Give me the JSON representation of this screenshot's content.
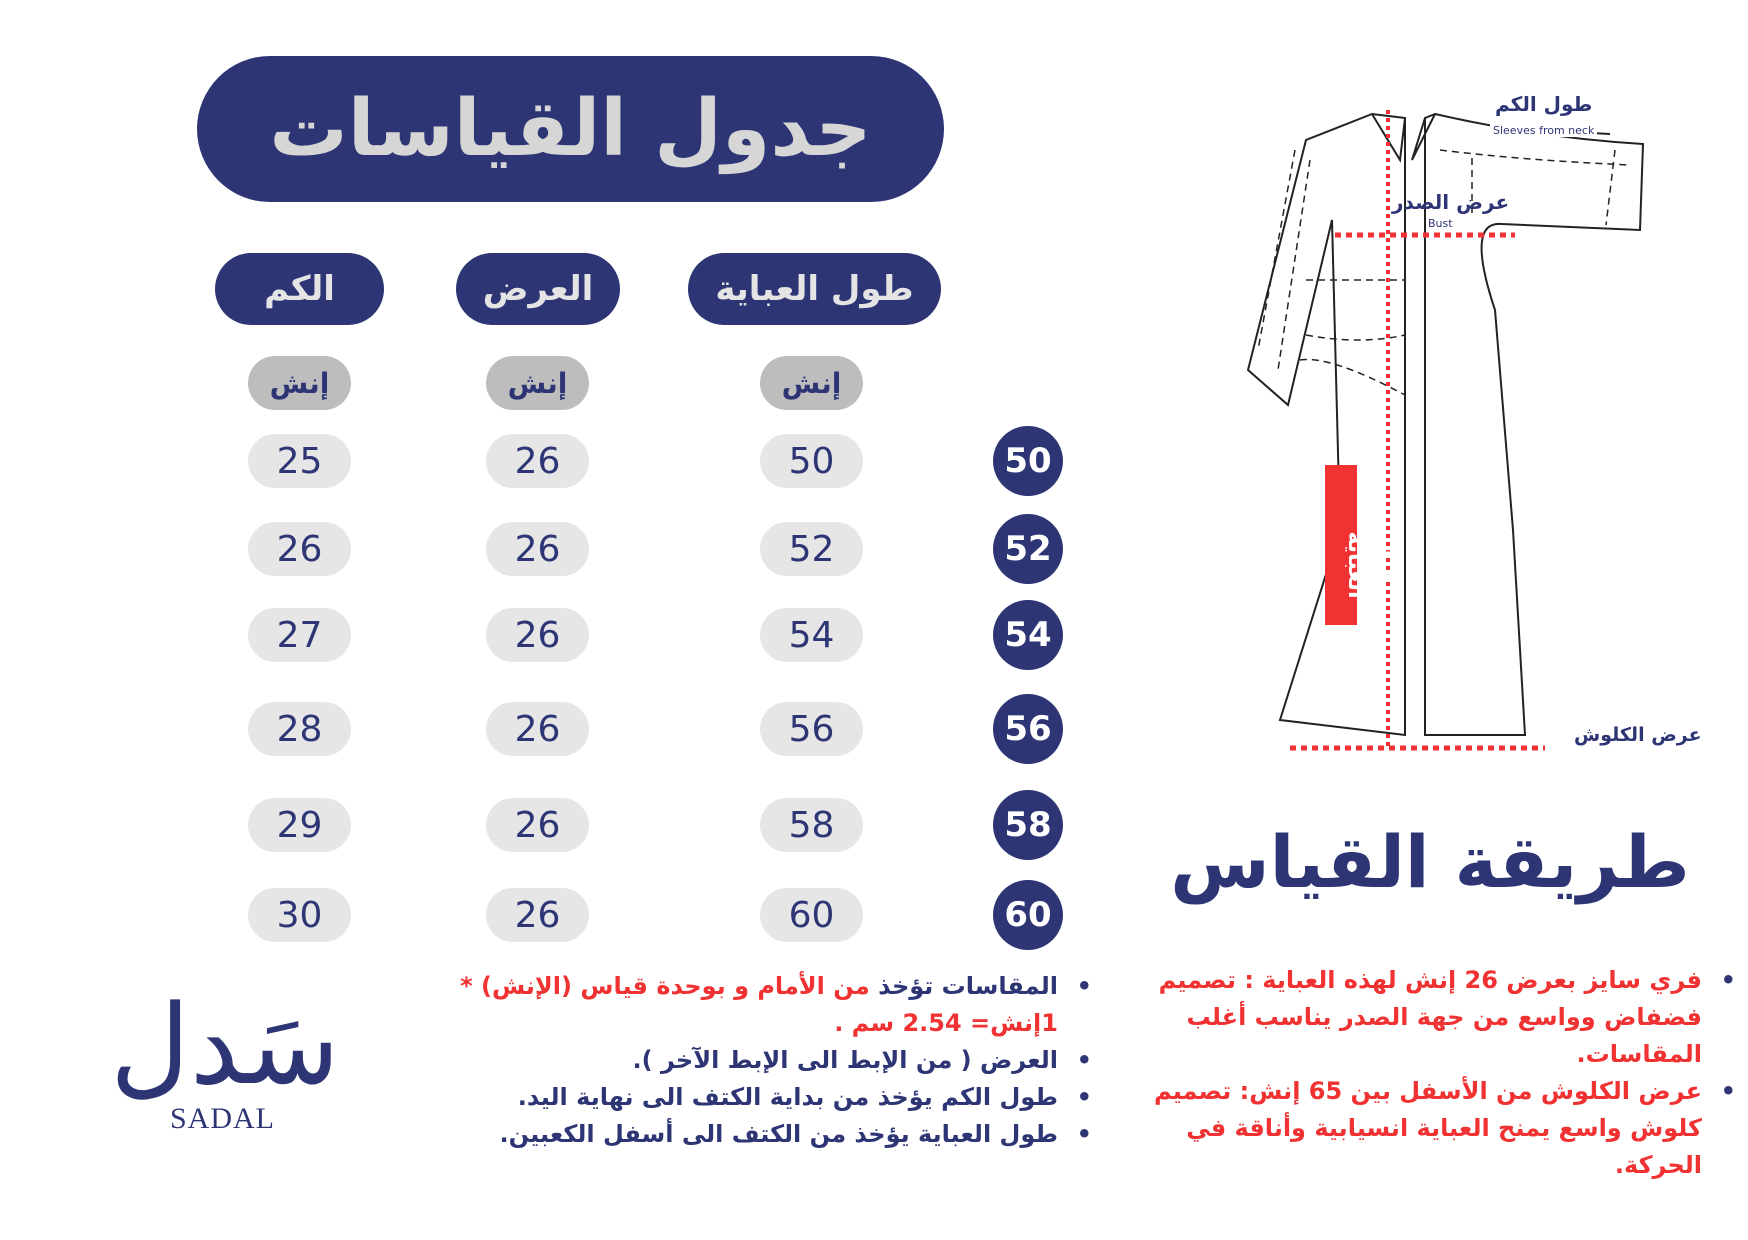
{
  "title": "جدول القياسات",
  "columns": [
    {
      "header": "الكم",
      "unit": "إنش",
      "values": [
        "25",
        "26",
        "27",
        "28",
        "29",
        "30"
      ]
    },
    {
      "header": "العرض",
      "unit": "إنش",
      "values": [
        "26",
        "26",
        "26",
        "26",
        "26",
        "26"
      ]
    },
    {
      "header": "طول العباية",
      "unit": "إنش",
      "values": [
        "50",
        "52",
        "54",
        "56",
        "58",
        "60"
      ]
    }
  ],
  "sizes": [
    "50",
    "52",
    "54",
    "56",
    "58",
    "60"
  ],
  "diagram": {
    "sleeve_ar": "طول الكم",
    "sleeve_en": "Sleeves from neck",
    "bust_ar": "عرض الصدر",
    "bust_en": "Bust",
    "length_ar": "طول العباية",
    "hem_ar": "عرض الكلوش"
  },
  "howto_title": "طريقة القياس",
  "notes_left": [
    {
      "dark": "المقاسات تؤخذ",
      "red": "من الأمام و بوحدة قياس (الإنش) * 1إنش= 2.54 سم ."
    },
    {
      "dark": "العرض ( من الإبط الى الإبط الآخر ).",
      "red": ""
    },
    {
      "dark": "طول الكم يؤخذ من بداية الكتف الى نهاية اليد.",
      "red": ""
    },
    {
      "dark": "طول العباية يؤخذ من الكتف الى أسفل الكعبين.",
      "red": ""
    }
  ],
  "notes_right": [
    "فري سايز بعرض 26 إنش لهذه العباية : تصميم فضفاض وواسع من جهة الصدر يناسب أغلب المقاسات.",
    "عرض الكلوش من الأسفل بين 65 إنش: تصميم كلوش واسع يمنح العباية انسيابية وأناقة في الحركة."
  ],
  "logo": {
    "ar": "سَدل",
    "en": "SADAL"
  },
  "colors": {
    "navy": "#2e3575",
    "red": "#f03232",
    "pill": "#e6e6e6",
    "unit_pill": "#bdbdbd"
  }
}
